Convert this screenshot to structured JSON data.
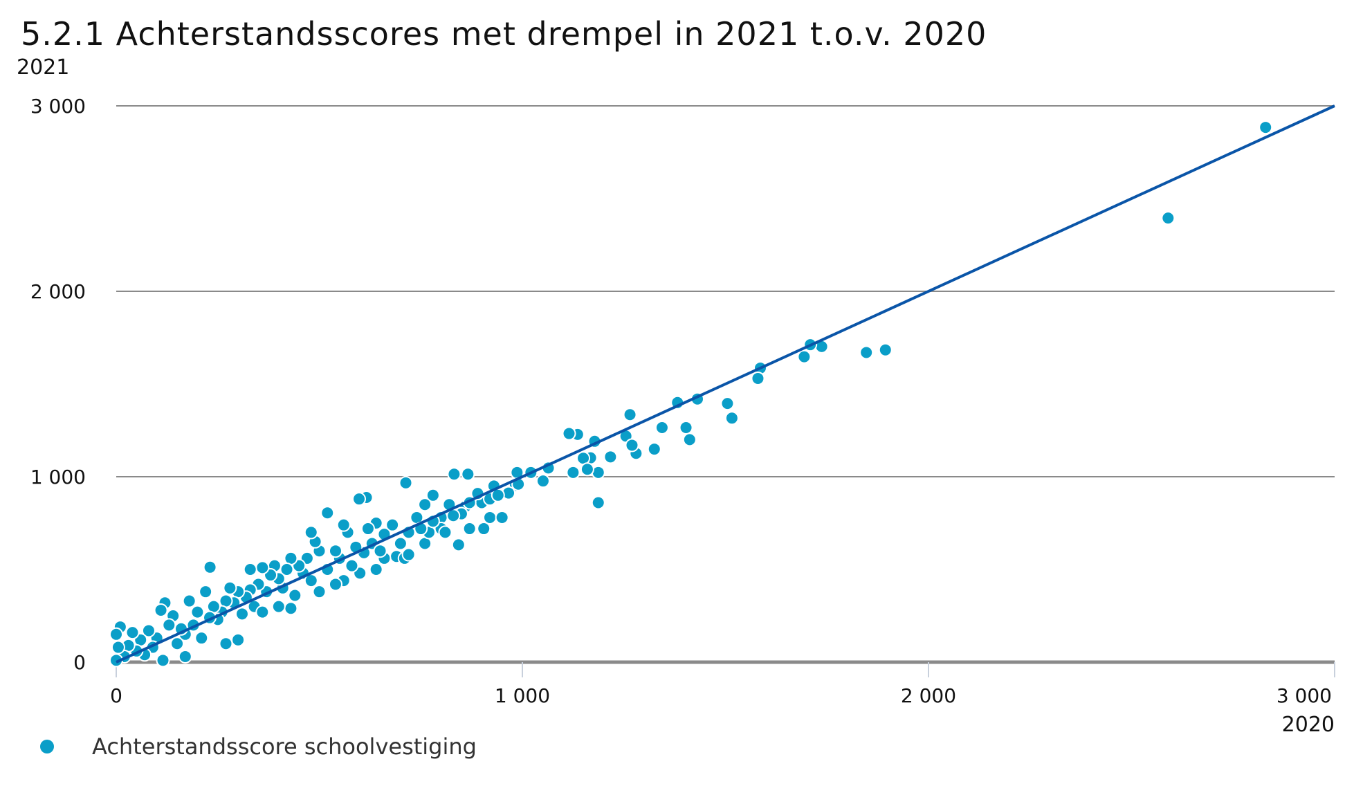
{
  "chart_data": {
    "type": "scatter",
    "title": "5.2.1 Achterstandsscores met drempel in 2021 t.o.v. 2020",
    "xlabel": "2020",
    "ylabel": "2021",
    "xlim": [
      0,
      3000
    ],
    "ylim": [
      0,
      3000
    ],
    "xticks": [
      "0",
      "1 000",
      "2 000",
      "3 000"
    ],
    "yticks": [
      "0",
      "1 000",
      "2 000",
      "3 000"
    ],
    "grid": "horizontal",
    "legend_placement": "bottom-left",
    "colors": {
      "points": "#0a9ec8",
      "line": "#0a55a8",
      "grid": "#8a8a8a"
    },
    "reference_line": {
      "from": [
        0,
        0
      ],
      "to": [
        3000,
        3000
      ]
    },
    "series": [
      {
        "name": "Achterstandsscore schoolvestiging",
        "points": [
          [
            2830,
            2884
          ],
          [
            2590,
            2395
          ],
          [
            1894,
            1684
          ],
          [
            1847,
            1670
          ],
          [
            1737,
            1702
          ],
          [
            1709,
            1712
          ],
          [
            1694,
            1647
          ],
          [
            1586,
            1586
          ],
          [
            1580,
            1530
          ],
          [
            1516,
            1316
          ],
          [
            1505,
            1395
          ],
          [
            1431,
            1419
          ],
          [
            1382,
            1400
          ],
          [
            1412,
            1200
          ],
          [
            1403,
            1265
          ],
          [
            1344,
            1265
          ],
          [
            1325,
            1149
          ],
          [
            1280,
            1126
          ],
          [
            1265,
            1335
          ],
          [
            1255,
            1219
          ],
          [
            1217,
            1107
          ],
          [
            1187,
            860
          ],
          [
            1178,
            1191
          ],
          [
            1187,
            1023
          ],
          [
            1168,
            1102
          ],
          [
            1136,
            1228
          ],
          [
            1115,
            1233
          ],
          [
            1125,
            1023
          ],
          [
            1064,
            1047
          ],
          [
            1051,
            977
          ],
          [
            1021,
            1023
          ],
          [
            987,
            1023
          ],
          [
            983,
            953
          ],
          [
            966,
            912
          ],
          [
            1150,
            1100
          ],
          [
            1160,
            1040
          ],
          [
            1270,
            1170
          ],
          [
            713,
            967
          ],
          [
            616,
            888
          ],
          [
            598,
            880
          ],
          [
            520,
            805
          ],
          [
            231,
            512
          ],
          [
            832,
            1014
          ],
          [
            866,
            1014
          ],
          [
            843,
            633
          ],
          [
            930,
            950
          ],
          [
            900,
            860
          ],
          [
            920,
            780
          ],
          [
            890,
            910
          ],
          [
            860,
            840
          ],
          [
            870,
            720
          ],
          [
            905,
            720
          ],
          [
            850,
            800
          ],
          [
            820,
            850
          ],
          [
            800,
            780
          ],
          [
            780,
            900
          ],
          [
            760,
            850
          ],
          [
            740,
            780
          ],
          [
            720,
            700
          ],
          [
            700,
            640
          ],
          [
            690,
            570
          ],
          [
            710,
            560
          ],
          [
            680,
            740
          ],
          [
            660,
            690
          ],
          [
            640,
            750
          ],
          [
            630,
            640
          ],
          [
            610,
            590
          ],
          [
            590,
            620
          ],
          [
            570,
            700
          ],
          [
            560,
            740
          ],
          [
            550,
            560
          ],
          [
            540,
            600
          ],
          [
            520,
            500
          ],
          [
            500,
            600
          ],
          [
            490,
            650
          ],
          [
            480,
            700
          ],
          [
            470,
            560
          ],
          [
            460,
            480
          ],
          [
            450,
            520
          ],
          [
            430,
            560
          ],
          [
            420,
            500
          ],
          [
            410,
            400
          ],
          [
            400,
            450
          ],
          [
            390,
            520
          ],
          [
            380,
            470
          ],
          [
            370,
            380
          ],
          [
            360,
            510
          ],
          [
            350,
            420
          ],
          [
            340,
            300
          ],
          [
            330,
            390
          ],
          [
            320,
            350
          ],
          [
            310,
            260
          ],
          [
            300,
            380
          ],
          [
            290,
            320
          ],
          [
            280,
            400
          ],
          [
            270,
            330
          ],
          [
            260,
            270
          ],
          [
            250,
            230
          ],
          [
            240,
            300
          ],
          [
            230,
            240
          ],
          [
            220,
            380
          ],
          [
            210,
            130
          ],
          [
            200,
            270
          ],
          [
            190,
            200
          ],
          [
            180,
            330
          ],
          [
            170,
            150
          ],
          [
            160,
            180
          ],
          [
            150,
            100
          ],
          [
            140,
            250
          ],
          [
            130,
            200
          ],
          [
            120,
            320
          ],
          [
            110,
            280
          ],
          [
            100,
            130
          ],
          [
            90,
            80
          ],
          [
            80,
            170
          ],
          [
            70,
            40
          ],
          [
            60,
            120
          ],
          [
            50,
            60
          ],
          [
            40,
            160
          ],
          [
            30,
            90
          ],
          [
            20,
            30
          ],
          [
            10,
            190
          ],
          [
            5,
            80
          ],
          [
            0,
            10
          ],
          [
            0,
            150
          ],
          [
            115,
            10
          ],
          [
            170,
            30
          ],
          [
            300,
            120
          ],
          [
            270,
            100
          ],
          [
            430,
            290
          ],
          [
            560,
            440
          ],
          [
            600,
            480
          ],
          [
            640,
            500
          ],
          [
            760,
            640
          ],
          [
            770,
            700
          ],
          [
            800,
            720
          ],
          [
            660,
            560
          ],
          [
            720,
            580
          ],
          [
            500,
            380
          ],
          [
            540,
            420
          ],
          [
            580,
            520
          ],
          [
            620,
            720
          ],
          [
            650,
            600
          ],
          [
            480,
            440
          ],
          [
            440,
            360
          ],
          [
            400,
            300
          ],
          [
            360,
            270
          ],
          [
            330,
            500
          ],
          [
            950,
            780
          ],
          [
            920,
            880
          ],
          [
            990,
            960
          ],
          [
            940,
            900
          ],
          [
            870,
            860
          ],
          [
            830,
            790
          ],
          [
            810,
            700
          ],
          [
            780,
            760
          ],
          [
            750,
            720
          ]
        ]
      }
    ]
  }
}
